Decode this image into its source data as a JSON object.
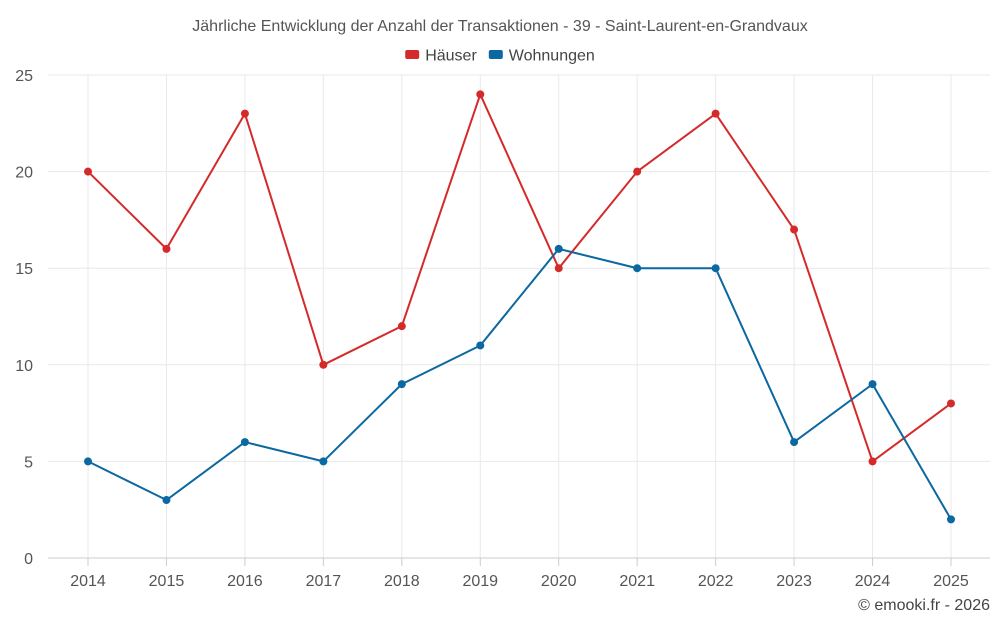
{
  "chart_data": {
    "type": "line",
    "title": "Jährliche Entwicklung der Anzahl der Transaktionen - 39 - Saint-Laurent-en-Grandvaux",
    "xlabel": "",
    "ylabel": "",
    "categories": [
      "2014",
      "2015",
      "2016",
      "2017",
      "2018",
      "2019",
      "2020",
      "2021",
      "2022",
      "2023",
      "2024",
      "2025"
    ],
    "ylim": [
      0,
      25
    ],
    "yticks": [
      0,
      5,
      10,
      15,
      20,
      25
    ],
    "grid": true,
    "legend_position": "top-center",
    "series": [
      {
        "name": "Häuser",
        "color": "#d42a2a",
        "values": [
          20,
          16,
          23,
          10,
          12,
          24,
          15,
          20,
          23,
          17,
          5,
          8
        ]
      },
      {
        "name": "Wohnungen",
        "color": "#0b68a1",
        "values": [
          5,
          3,
          6,
          5,
          9,
          11,
          16,
          15,
          15,
          6,
          9,
          2
        ]
      }
    ]
  },
  "credit": "© emooki.fr - 2026"
}
